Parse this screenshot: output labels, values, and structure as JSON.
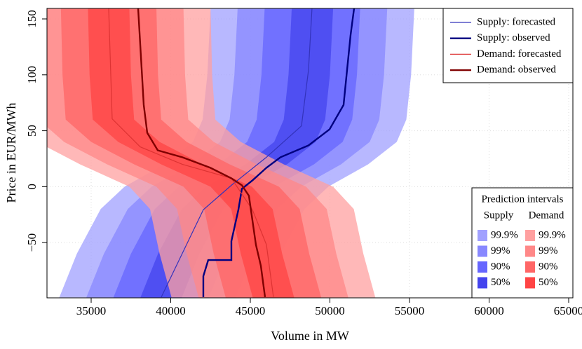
{
  "chart_data": {
    "type": "line",
    "x_label": "Volume in MW",
    "y_label": "Price in EUR/MWh",
    "xlim": [
      32225,
      65265
    ],
    "ylim": [
      -99.4,
      159.4
    ],
    "xticks": [
      35000,
      40000,
      45000,
      50000,
      55000,
      60000,
      65000
    ],
    "yticks": [
      {
        "value": -50,
        "label": "−50"
      },
      0,
      50,
      100,
      150
    ],
    "grid": true,
    "legend_position": "top-right",
    "series": [
      {
        "name": "Supply: forecasted",
        "color": "#3333bb",
        "width": 1.2,
        "x": [
          39405,
          42048,
          43810,
          46012,
          48215,
          48655,
          48875
        ],
        "values": [
          -98.75,
          -20.6,
          1.25,
          26.3,
          54.4,
          104.4,
          159.4
        ]
      },
      {
        "name": "Supply: observed",
        "color": "#000080",
        "width": 2.4,
        "x": [
          42048,
          42048,
          42356,
          43810,
          43810,
          44250,
          44470,
          45132,
          46012,
          46893,
          48655,
          49977,
          50858,
          51078,
          51299,
          51519
        ],
        "values": [
          -98.75,
          -80,
          -65.6,
          -65.6,
          -48.75,
          -20.6,
          -1.9,
          5.6,
          16.9,
          26.3,
          36.9,
          51.25,
          73.1,
          104.4,
          135.6,
          159.4
        ]
      },
      {
        "name": "Demand: forecasted",
        "color": "#dd3333",
        "width": 1.2,
        "x": [
          36101,
          36321,
          38083,
          40727,
          43810,
          45132,
          46012,
          46453
        ],
        "values": [
          159.4,
          60.6,
          35.6,
          20,
          7.5,
          -20.6,
          -51.9,
          -98.75
        ]
      },
      {
        "name": "Demand: observed",
        "color": "#800000",
        "width": 2.4,
        "x": [
          37952,
          38304,
          38524,
          39185,
          40727,
          42489,
          43810,
          44470,
          44911,
          45351,
          45660,
          45924
        ],
        "values": [
          159.4,
          73.1,
          48.1,
          32.5,
          26.3,
          16.9,
          7.5,
          1.25,
          -8.1,
          -51.9,
          -70.6,
          -98.75
        ]
      }
    ],
    "interval_legend_title": "Prediction intervals",
    "interval_prices": [
      -99,
      -60,
      -20,
      0,
      20,
      40,
      60,
      100,
      159
    ],
    "band_opacity": 0.75,
    "interval_sets": [
      {
        "name": "Supply",
        "bands": [
          {
            "level": "99.9%",
            "color": "#a0a0ff",
            "lower": [
              33000,
              34100,
              35600,
              37100,
              39600,
              41400,
              42000,
              42300,
              42500
            ],
            "upper": [
              45800,
              46900,
              48400,
              49900,
              52400,
              54200,
              54800,
              55100,
              55300
            ]
          },
          {
            "level": "99%",
            "color": "#8888ff",
            "lower": [
              34700,
              35800,
              37300,
              38800,
              41300,
              43100,
              43700,
              44000,
              44200
            ],
            "upper": [
              44100,
              45200,
              46700,
              48200,
              50700,
              52500,
              53100,
              53400,
              53600
            ]
          },
          {
            "level": "90%",
            "color": "#6666ff",
            "lower": [
              36400,
              37500,
              39000,
              40500,
              43000,
              44800,
              45400,
              45700,
              45900
            ],
            "upper": [
              42400,
              43500,
              45000,
              46500,
              49000,
              50800,
              51400,
              51700,
              51900
            ]
          },
          {
            "level": "50%",
            "color": "#4444ee",
            "lower": [
              38100,
              39200,
              40700,
              42200,
              44700,
              46500,
              47100,
              47400,
              47600
            ],
            "upper": [
              40700,
              41800,
              43300,
              44800,
              47300,
              49100,
              49700,
              50000,
              50200
            ]
          }
        ]
      },
      {
        "name": "Demand",
        "bands": [
          {
            "level": "99.9%",
            "color": "#ffa0a0",
            "lower": [
              40050,
              39300,
              38700,
              37400,
              34300,
              31600,
              30000,
              29800,
              29700
            ],
            "upper": [
              52850,
              52100,
              51500,
              50200,
              47100,
              44400,
              42800,
              42600,
              42500
            ]
          },
          {
            "level": "99%",
            "color": "#ff8888",
            "lower": [
              41750,
              41000,
              40400,
              39100,
              36000,
              33300,
              31700,
              31500,
              31400
            ],
            "upper": [
              51150,
              50400,
              49800,
              48500,
              45400,
              42700,
              41100,
              40900,
              40800
            ]
          },
          {
            "level": "90%",
            "color": "#ff6666",
            "lower": [
              43450,
              42700,
              42100,
              40800,
              37700,
              35000,
              33400,
              33200,
              33100
            ],
            "upper": [
              49450,
              48700,
              48100,
              46800,
              43700,
              41000,
              39400,
              39200,
              39100
            ]
          },
          {
            "level": "50%",
            "color": "#ff4444",
            "lower": [
              45150,
              44400,
              43800,
              42500,
              39400,
              36700,
              35100,
              34900,
              34800
            ],
            "upper": [
              47750,
              47000,
              46400,
              45100,
              42000,
              39300,
              37700,
              37500,
              37400
            ]
          }
        ]
      }
    ]
  }
}
